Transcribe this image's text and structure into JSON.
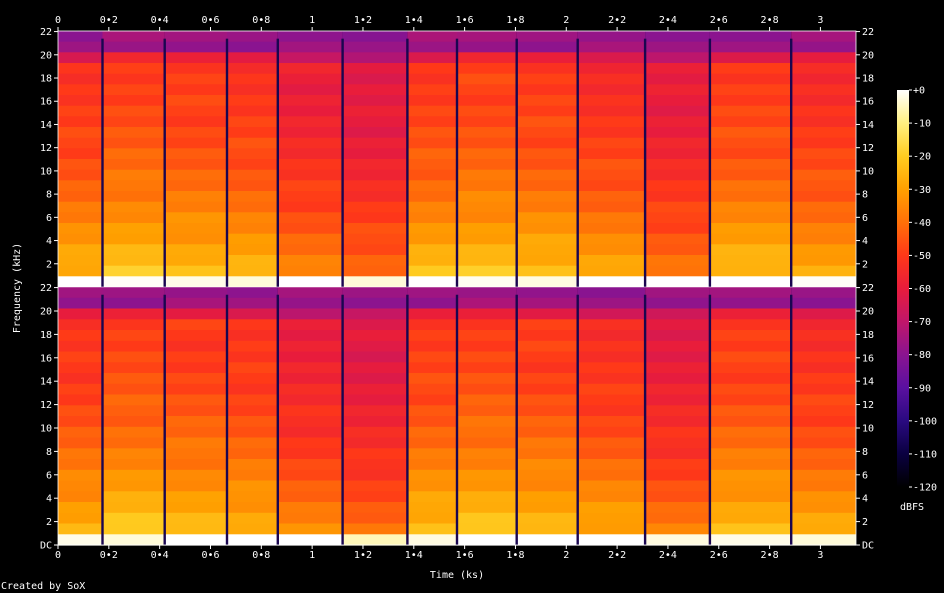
{
  "chart_data": {
    "type": "heatmap",
    "xlabel": "Time (ks)",
    "ylabel": "Frequency (kHz)",
    "x_ticks": [
      "0",
      "0•2",
      "0•4",
      "0•6",
      "0•8",
      "1",
      "1•2",
      "1•4",
      "1•6",
      "1•8",
      "2",
      "2•2",
      "2•4",
      "2•6",
      "2•8",
      "3"
    ],
    "x_tick_values": [
      0,
      0.2,
      0.4,
      0.6,
      0.8,
      1.0,
      1.2,
      1.4,
      1.6,
      1.8,
      2.0,
      2.2,
      2.4,
      2.6,
      2.8,
      3.0
    ],
    "xlim": [
      0,
      3.14
    ],
    "y_ticks_top": [
      "22",
      "20",
      "18",
      "16",
      "14",
      "12",
      "10",
      "8",
      "6",
      "4",
      "2"
    ],
    "y_ticks_bottom": [
      "22",
      "20",
      "18",
      "16",
      "14",
      "12",
      "10",
      "8",
      "6",
      "4",
      "2",
      "DC"
    ],
    "y_tick_values_top": [
      22,
      20,
      18,
      16,
      14,
      12,
      10,
      8,
      6,
      4,
      2
    ],
    "y_tick_values_bottom": [
      22,
      20,
      18,
      16,
      14,
      12,
      10,
      8,
      6,
      4,
      2,
      0
    ],
    "ylim": [
      0,
      22.05
    ],
    "channels": 2,
    "colorbar": {
      "label": "dBFS",
      "ticks": [
        "+0",
        "-10",
        "-20",
        "-30",
        "-40",
        "-50",
        "-60",
        "-70",
        "-80",
        "-90",
        "-100",
        "-110",
        "-120"
      ],
      "tick_values": [
        0,
        -10,
        -20,
        -30,
        -40,
        -50,
        -60,
        -70,
        -80,
        -90,
        -100,
        -110,
        -120
      ],
      "range": [
        -120,
        0
      ],
      "colors": [
        "#000000",
        "#0a0040",
        "#2a0a80",
        "#5a10a0",
        "#8a1490",
        "#c0166a",
        "#e81c3c",
        "#ff3818",
        "#ff7008",
        "#ffa000",
        "#ffcc20",
        "#fff080",
        "#ffffff"
      ]
    },
    "track_boundaries_ks": [
      0.175,
      0.42,
      0.665,
      0.865,
      1.12,
      1.375,
      1.57,
      1.805,
      2.045,
      2.31,
      2.565,
      2.885
    ],
    "segments": [
      {
        "start": 0.0,
        "end": 0.175,
        "level": 0.78
      },
      {
        "start": 0.175,
        "end": 0.42,
        "level": 0.82
      },
      {
        "start": 0.42,
        "end": 0.665,
        "level": 0.8
      },
      {
        "start": 0.665,
        "end": 0.865,
        "level": 0.78
      },
      {
        "start": 0.865,
        "end": 1.12,
        "level": 0.7
      },
      {
        "start": 1.12,
        "end": 1.375,
        "level": 0.66
      },
      {
        "start": 1.375,
        "end": 1.57,
        "level": 0.8
      },
      {
        "start": 1.57,
        "end": 1.805,
        "level": 0.82
      },
      {
        "start": 1.805,
        "end": 2.045,
        "level": 0.8
      },
      {
        "start": 2.045,
        "end": 2.31,
        "level": 0.76
      },
      {
        "start": 2.31,
        "end": 2.565,
        "level": 0.68
      },
      {
        "start": 2.565,
        "end": 2.885,
        "level": 0.8
      },
      {
        "start": 2.885,
        "end": 3.14,
        "level": 0.76
      }
    ]
  },
  "footer": {
    "credit": "Created by SoX"
  }
}
